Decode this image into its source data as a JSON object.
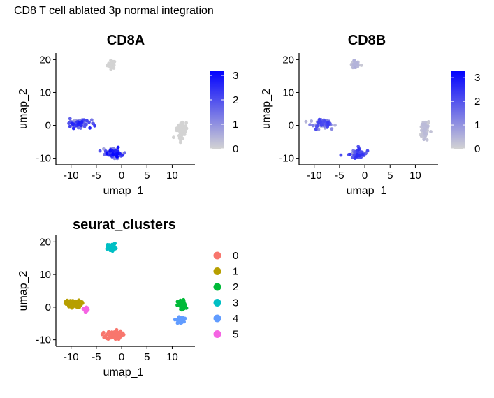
{
  "figure_title": "CD8 T cell ablated 3p normal integration",
  "colors": {
    "low": "#d3d3d3",
    "high": "#0000ff",
    "clusters": [
      "#F8766D",
      "#B79F00",
      "#00BA38",
      "#00BFC4",
      "#619CFF",
      "#F564E3"
    ]
  },
  "chart_data": [
    {
      "type": "scatter",
      "title": "CD8A",
      "xlabel": "umap_1",
      "ylabel": "umap_2",
      "xticks": [
        "-10",
        "-5",
        "0",
        "5",
        "10"
      ],
      "yticks": [
        "-10",
        "0",
        "10",
        "20"
      ],
      "xlim": [
        -13,
        14.5
      ],
      "ylim": [
        -12,
        22
      ],
      "color_scale": {
        "labels": [
          "0",
          "1",
          "2",
          "3"
        ],
        "min": 0,
        "max": 3.2
      },
      "groups": [
        {
          "name": "top",
          "center": [
            -2,
            18.5
          ],
          "spread": [
            0.8,
            1.2
          ],
          "n": 40,
          "expr": [
            0,
            0
          ]
        },
        {
          "name": "left",
          "center": [
            -8.5,
            0.5
          ],
          "spread": [
            2.2,
            1.2
          ],
          "n": 80,
          "expr": [
            0.6,
            2.8
          ]
        },
        {
          "name": "bottom",
          "center": [
            -1.5,
            -8.5
          ],
          "spread": [
            1.6,
            1.3
          ],
          "n": 80,
          "expr": [
            0.4,
            3.2
          ]
        },
        {
          "name": "right",
          "center": [
            11.8,
            -1.5
          ],
          "spread": [
            0.9,
            2.8
          ],
          "n": 70,
          "expr": [
            0,
            0
          ]
        }
      ]
    },
    {
      "type": "scatter",
      "title": "CD8B",
      "xlabel": "umap_1",
      "ylabel": "umap_2",
      "xticks": [
        "-10",
        "-5",
        "0",
        "5",
        "10"
      ],
      "yticks": [
        "-10",
        "0",
        "10",
        "20"
      ],
      "xlim": [
        -13,
        14.5
      ],
      "ylim": [
        -12,
        22
      ],
      "color_scale": {
        "labels": [
          "0",
          "1",
          "2",
          "3"
        ],
        "min": 0,
        "max": 3.3
      },
      "groups": [
        {
          "name": "top",
          "center": [
            -2,
            18.5
          ],
          "spread": [
            0.8,
            1.2
          ],
          "n": 40,
          "expr": [
            0,
            0.6
          ]
        },
        {
          "name": "left",
          "center": [
            -8.5,
            0.5
          ],
          "spread": [
            2.2,
            1.2
          ],
          "n": 80,
          "expr": [
            0.3,
            2.4
          ]
        },
        {
          "name": "bottom",
          "center": [
            -1.5,
            -8.5
          ],
          "spread": [
            1.6,
            1.3
          ],
          "n": 80,
          "expr": [
            0.3,
            2.6
          ]
        },
        {
          "name": "right",
          "center": [
            11.8,
            -1.5
          ],
          "spread": [
            0.9,
            2.8
          ],
          "n": 70,
          "expr": [
            0,
            0.4
          ]
        }
      ]
    },
    {
      "type": "scatter",
      "title": "seurat_clusters",
      "xlabel": "umap_1",
      "ylabel": "umap_2",
      "xticks": [
        "-10",
        "-5",
        "0",
        "5",
        "10"
      ],
      "yticks": [
        "-10",
        "0",
        "10",
        "20"
      ],
      "xlim": [
        -13,
        14.5
      ],
      "ylim": [
        -12,
        22
      ],
      "legend": [
        "0",
        "1",
        "2",
        "3",
        "4",
        "5"
      ],
      "clusters": [
        {
          "label": "0",
          "center": [
            -1.5,
            -8.5
          ],
          "spread": [
            1.6,
            1.3
          ],
          "n": 90
        },
        {
          "label": "1",
          "center": [
            -9.5,
            1
          ],
          "spread": [
            1.5,
            1.1
          ],
          "n": 80
        },
        {
          "label": "2",
          "center": [
            11.9,
            0.5
          ],
          "spread": [
            0.8,
            1.6
          ],
          "n": 60
        },
        {
          "label": "3",
          "center": [
            -2,
            18.5
          ],
          "spread": [
            0.8,
            1.0
          ],
          "n": 45
        },
        {
          "label": "4",
          "center": [
            11.6,
            -4
          ],
          "spread": [
            0.7,
            0.9
          ],
          "n": 35
        },
        {
          "label": "5",
          "center": [
            -7,
            -0.5
          ],
          "spread": [
            0.7,
            0.6
          ],
          "n": 20
        }
      ]
    }
  ]
}
